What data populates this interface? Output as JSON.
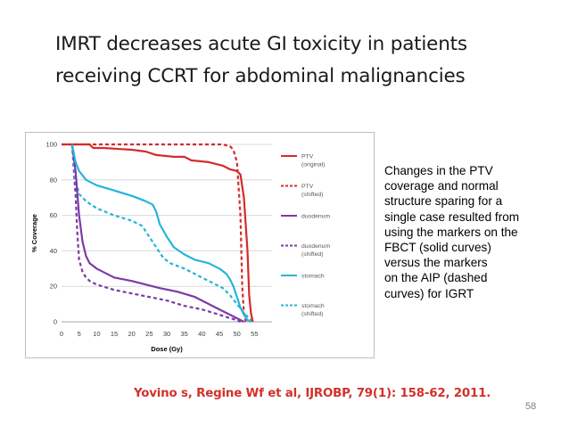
{
  "slide": {
    "title_lines": [
      "IMRT decreases acute GI toxicity in patients",
      "receiving CCRT for abdominal malignancies"
    ],
    "note_lines": [
      "Changes in the PTV",
      "coverage and normal",
      "structure sparing for a",
      "single case resulted from",
      "using the markers on the",
      "FBCT (solid curves)",
      "versus the markers",
      "on the AIP (dashed",
      "curves) for IGRT"
    ],
    "citation": "Yovino s, Regine Wf et al, IJROBP, 79(1): 158-62, 2011.",
    "page_number": "58"
  },
  "colors": {
    "ptv": "#d42b2b",
    "duodenum": "#7c3aa8",
    "stomach": "#27b4da",
    "grid": "#d9d9d9",
    "axis_text": "#404040"
  },
  "chart_data": {
    "type": "line",
    "title": "",
    "xlabel": "Dose (Gy)",
    "ylabel": "% Coverage",
    "xlim": [
      0,
      60
    ],
    "ylim": [
      0,
      100
    ],
    "x_ticks": [
      0,
      5,
      10,
      15,
      20,
      25,
      30,
      35,
      40,
      45,
      50,
      55
    ],
    "y_ticks": [
      0,
      20,
      40,
      60,
      80,
      100
    ],
    "grid": "horizontal",
    "legend_position": "right",
    "series": [
      {
        "name": "PTV (original)",
        "legend_lines": [
          "PTV",
          "(original)"
        ],
        "color_key": "ptv",
        "dashed": false,
        "points": [
          [
            0,
            100
          ],
          [
            8,
            100
          ],
          [
            9,
            98
          ],
          [
            12,
            98
          ],
          [
            20,
            97
          ],
          [
            24,
            96
          ],
          [
            27,
            94
          ],
          [
            32,
            93
          ],
          [
            35,
            93
          ],
          [
            37,
            91
          ],
          [
            42,
            90
          ],
          [
            46,
            88
          ],
          [
            48,
            86
          ],
          [
            50,
            85
          ],
          [
            51,
            83
          ],
          [
            52,
            70
          ],
          [
            53,
            40
          ],
          [
            53.5,
            15
          ],
          [
            54,
            5
          ],
          [
            54.5,
            0
          ]
        ]
      },
      {
        "name": "PTV (shifted)",
        "legend_lines": [
          "PTV",
          "(shifted)"
        ],
        "color_key": "ptv",
        "dashed": true,
        "points": [
          [
            0,
            100
          ],
          [
            20,
            100
          ],
          [
            40,
            100
          ],
          [
            46,
            100
          ],
          [
            48,
            99
          ],
          [
            49,
            97
          ],
          [
            50,
            90
          ],
          [
            51,
            60
          ],
          [
            51.5,
            20
          ],
          [
            52,
            5
          ],
          [
            52.5,
            0
          ]
        ]
      },
      {
        "name": "duodenum (original)",
        "legend_lines": [
          "duodenum"
        ],
        "color_key": "duodenum",
        "dashed": false,
        "points": [
          [
            3,
            100
          ],
          [
            4,
            85
          ],
          [
            5,
            60
          ],
          [
            6,
            45
          ],
          [
            7,
            37
          ],
          [
            8,
            33
          ],
          [
            10,
            30
          ],
          [
            13,
            27
          ],
          [
            15,
            25
          ],
          [
            20,
            23
          ],
          [
            24,
            21
          ],
          [
            28,
            19
          ],
          [
            33,
            17
          ],
          [
            38,
            14
          ],
          [
            42,
            10
          ],
          [
            46,
            6
          ],
          [
            49,
            3
          ],
          [
            51,
            1
          ],
          [
            52,
            0
          ]
        ]
      },
      {
        "name": "duodenum (shifted)",
        "legend_lines": [
          "duodenum",
          "(shifted)"
        ],
        "color_key": "duodenum",
        "dashed": true,
        "points": [
          [
            3,
            100
          ],
          [
            4,
            72
          ],
          [
            4.5,
            50
          ],
          [
            5,
            35
          ],
          [
            6,
            28
          ],
          [
            7,
            25
          ],
          [
            8,
            23
          ],
          [
            10,
            21
          ],
          [
            15,
            18
          ],
          [
            20,
            16
          ],
          [
            25,
            14
          ],
          [
            30,
            12
          ],
          [
            35,
            9
          ],
          [
            40,
            7
          ],
          [
            45,
            4
          ],
          [
            48,
            2
          ],
          [
            50,
            1
          ],
          [
            51,
            0
          ]
        ]
      },
      {
        "name": "stomach (original)",
        "legend_lines": [
          "stomach"
        ],
        "color_key": "stomach",
        "dashed": false,
        "points": [
          [
            3,
            100
          ],
          [
            4,
            90
          ],
          [
            5,
            85
          ],
          [
            7,
            80
          ],
          [
            10,
            77
          ],
          [
            15,
            74
          ],
          [
            20,
            71
          ],
          [
            24,
            68
          ],
          [
            26,
            66
          ],
          [
            27,
            62
          ],
          [
            28,
            55
          ],
          [
            30,
            48
          ],
          [
            32,
            42
          ],
          [
            35,
            38
          ],
          [
            38,
            35
          ],
          [
            42,
            33
          ],
          [
            45,
            30
          ],
          [
            47,
            27
          ],
          [
            48,
            24
          ],
          [
            49,
            20
          ],
          [
            50,
            14
          ],
          [
            51,
            8
          ],
          [
            52,
            4
          ],
          [
            53,
            1
          ],
          [
            54,
            0
          ]
        ]
      },
      {
        "name": "stomach (shifted)",
        "legend_lines": [
          "stomach",
          "(shifted)"
        ],
        "color_key": "stomach",
        "dashed": true,
        "points": [
          [
            3,
            100
          ],
          [
            4,
            80
          ],
          [
            5,
            72
          ],
          [
            7,
            68
          ],
          [
            10,
            64
          ],
          [
            15,
            60
          ],
          [
            20,
            57
          ],
          [
            23,
            54
          ],
          [
            25,
            48
          ],
          [
            27,
            42
          ],
          [
            29,
            36
          ],
          [
            31,
            33
          ],
          [
            35,
            30
          ],
          [
            38,
            27
          ],
          [
            40,
            25
          ],
          [
            43,
            22
          ],
          [
            46,
            19
          ],
          [
            48,
            15
          ],
          [
            50,
            10
          ],
          [
            52,
            5
          ],
          [
            54,
            1
          ],
          [
            55,
            0
          ]
        ]
      }
    ]
  }
}
